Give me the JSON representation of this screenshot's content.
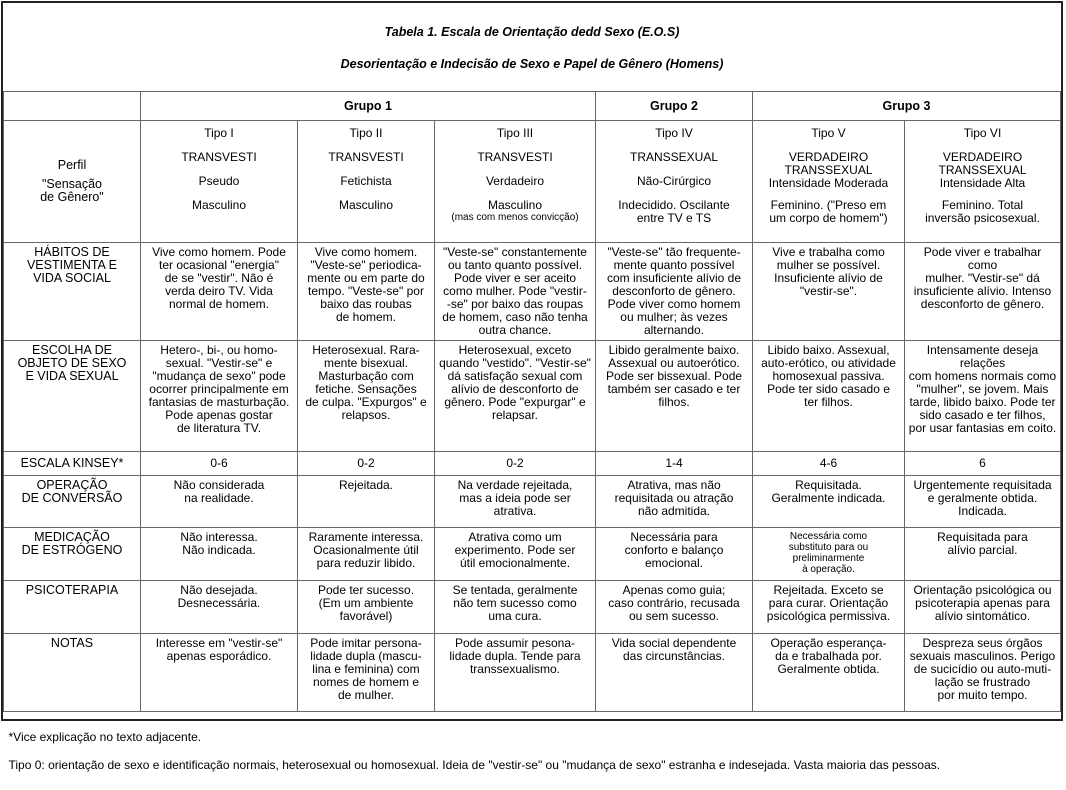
{
  "title": "Tabela 1. Escala de Orientação dedd Sexo (E.O.S)",
  "subtitle": "Desorientação e Indecisão de Sexo e Papel de Gênero (Homens)",
  "groups": [
    "Grupo 1",
    "Grupo 2",
    "Grupo 3"
  ],
  "perfil_label": {
    "l1": "Perfil",
    "l2": "\"Sensação\nde Gênero\""
  },
  "tipos": [
    {
      "tipo": "Tipo I",
      "nome": "TRANSVESTI",
      "sub": "Pseudo",
      "sensacao": "Masculino",
      "nota": ""
    },
    {
      "tipo": "Tipo II",
      "nome": "TRANSVESTI",
      "sub": "Fetichista",
      "sensacao": "Masculino",
      "nota": ""
    },
    {
      "tipo": "Tipo III",
      "nome": "TRANSVESTI",
      "sub": "Verdadeiro",
      "sensacao": "Masculino",
      "nota": "(mas com menos convicção)"
    },
    {
      "tipo": "Tipo IV",
      "nome": "TRANSSEXUAL",
      "sub": "Não-Cirúrgico",
      "sensacao": "Indecidido. Oscilante\nentre TV e TS",
      "nota": ""
    },
    {
      "tipo": "Tipo V",
      "nome": "VERDADEIRO\nTRANSSEXUAL",
      "sub": "Intensidade Moderada",
      "sensacao": "Feminino. (\"Preso em\num corpo de homem\")",
      "nota": ""
    },
    {
      "tipo": "Tipo VI",
      "nome": "VERDADEIRO\nTRANSSEXUAL",
      "sub": "Intensidade Alta",
      "sensacao": "Feminino. Total\ninversão psicosexual.",
      "nota": ""
    }
  ],
  "rows": [
    {
      "key": "hab",
      "label": "HÁBITOS DE\nVESTIMENTA E\nVIDA SOCIAL",
      "cells": [
        "Vive como homem. Pode\nter ocasional \"energia\"\nde se \"vestir\". Não é\nverda deiro TV. Vida\nnormal de homem.",
        "Vive como homem.\n\"Veste-se\" periodica-\nmente ou em parte do\ntempo. \"Veste-se\" por\nbaixo das roubas\nde homem.",
        "\"Veste-se\" constantemente\nou tanto quanto possível.\nPode viver e ser aceito\ncomo mulher. Pode \"vestir-\n-se\" por baixo das roupas\nde homem, caso não tenha\noutra chance.",
        "\"Veste-se\" tão frequente-\nmente quanto possível\ncom insuficiente alívio de\ndesconforto de gênero.\nPode viver como homem\nou mulher; às vezes\nalternando.",
        "Vive e trabalha como\nmulher se possível.\nInsuficiente alívio de\n\"vestir-se\".",
        "Pode viver e trabalhar como\nmulher. \"Vestir-se\" dá\ninsuficiente alívio. Intenso\ndesconforto de gênero."
      ]
    },
    {
      "key": "esc",
      "label": "ESCOLHA DE\nOBJETO DE SEXO\nE VIDA SEXUAL",
      "cells": [
        "Hetero-, bi-, ou homo-\nsexual. \"Vestir-se\" e\n\"mudança de sexo\" pode\nocorrer principalmente em\nfantasias de masturbação.\nPode apenas gostar\nde literatura TV.",
        "Heterosexual. Rara-\nmente bisexual.\nMasturbação com\nfetiche. Sensações\nde culpa. \"Expurgos\" e\nrelapsos.",
        "Heterosexual, exceto\nquando \"vestido\". \"Vestir-se\"\ndá satisfação sexual com\nalívio de desconforto de\ngênero. Pode \"expurgar\" e\nrelapsar.",
        "Libido geralmente baixo.\nAssexual ou autoerótico.\nPode ser bissexual. Pode\ntambém ser casado e ter\nfilhos.",
        "Libido baixo. Assexual,\nauto-erótico, ou atividade\nhomosexual passiva.\nPode ter sido casado e\nter filhos.",
        "Intensamente deseja relações\ncom homens normais como\n\"mulher\", se jovem. Mais\ntarde, libido baixo. Pode ter\nsido casado e ter filhos,\npor usar fantasias em coito."
      ]
    },
    {
      "key": "kin",
      "label": "ESCALA KINSEY*",
      "cells": [
        "0-6",
        "0-2",
        "0-2",
        "1-4",
        "4-6",
        "6"
      ]
    },
    {
      "key": "op",
      "label": "OPERAÇÃO\nDE CONVERSÃO",
      "cells": [
        "Não considerada\nna realidade.",
        "Rejeitada.",
        "Na verdade rejeitada,\nmas a ideia pode ser\natrativa.",
        "Atrativa, mas não\nrequisitada ou atração\nnão admitida.",
        "Requisitada.\nGeralmente indicada.",
        "Urgentemente requisitada\ne geralmente obtida.\nIndicada."
      ]
    },
    {
      "key": "med",
      "label": "MEDICAÇÃO\nDE ESTRÓGENO",
      "cells": [
        "Não interessa.\nNão indicada.",
        "Raramente interessa.\nOcasionalmente útil\npara reduzir libido.",
        "Atrativa como um\nexperimento. Pode ser\nútil emocionalmente.",
        "Necessária para\nconforto e balanço\nemocional.",
        "Necessária como\nsubstituto para ou\npreliminarmente\nà operação.",
        "Requisitada para\nalívio parcial."
      ]
    },
    {
      "key": "psi",
      "label": "PSICOTERAPIA",
      "cells": [
        "Não desejada.\nDesnecessária.",
        "Pode ter sucesso.\n(Em um ambiente\nfavorável)",
        "Se tentada, geralmente\nnão tem sucesso como\numa cura.",
        "Apenas como guia;\ncaso contrário, recusada\nou sem sucesso.",
        "Rejeitada. Exceto se\npara curar. Orientação\npsicológica permissiva.",
        "Orientação psicológica ou\npsicoterapia apenas para\nalívio sintomático."
      ]
    },
    {
      "key": "not",
      "label": "NOTAS",
      "cells": [
        "Interesse em \"vestir-se\"\napenas esporádico.",
        "Pode imitar persona-\nlidade dupla (mascu-\nlina e feminina) com\nnomes de homem e\nde mulher.",
        "Pode assumir pesona-\nlidade dupla. Tende para\ntranssexualismo.",
        "Vida social dependente\ndas circunstâncias.",
        "Operação esperança-\nda e trabalhada por.\nGeralmente obtida.",
        "Despreza seus órgãos\nsexuais masculinos. Perigo\nde sucicídio ou auto-muti-\nlação se frustrado\npor muito tempo."
      ]
    }
  ],
  "footnotes": [
    "*Vice explicação no texto adjacente.",
    "Tipo 0: orientação de sexo e identificação normais, heterosexual ou homosexual. Ideia de \"vestir-se\" ou \"mudança de sexo\" estranha e indesejada. Vasta maioria das pessoas."
  ]
}
